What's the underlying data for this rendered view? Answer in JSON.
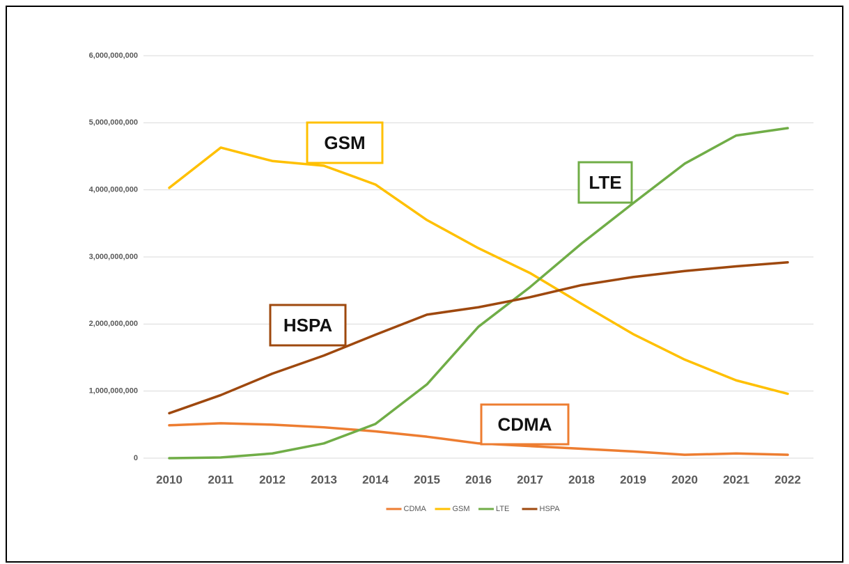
{
  "chart_data": {
    "type": "line",
    "categories": [
      "2010",
      "2011",
      "2012",
      "2013",
      "2014",
      "2015",
      "2016",
      "2017",
      "2018",
      "2019",
      "2020",
      "2021",
      "2022"
    ],
    "series": [
      {
        "name": "CDMA",
        "color": "#ed7d31",
        "values": [
          490000000,
          520000000,
          500000000,
          460000000,
          400000000,
          320000000,
          220000000,
          180000000,
          140000000,
          100000000,
          50000000,
          70000000,
          50000000
        ]
      },
      {
        "name": "GSM",
        "color": "#ffc000",
        "values": [
          4030000000,
          4630000000,
          4430000000,
          4360000000,
          4080000000,
          3550000000,
          3130000000,
          2760000000,
          2300000000,
          1850000000,
          1470000000,
          1160000000,
          960000000
        ]
      },
      {
        "name": "LTE",
        "color": "#70ad47",
        "values": [
          0,
          10000000,
          70000000,
          220000000,
          510000000,
          1100000000,
          1960000000,
          2550000000,
          3200000000,
          3800000000,
          4390000000,
          4810000000,
          4920000000
        ]
      },
      {
        "name": "HSPA",
        "color": "#9e480e",
        "values": [
          670000000,
          940000000,
          1260000000,
          1530000000,
          1840000000,
          2140000000,
          2250000000,
          2400000000,
          2580000000,
          2700000000,
          2790000000,
          2860000000,
          2920000000
        ]
      }
    ],
    "ylim": [
      0,
      6000000000
    ],
    "yticks": [
      0,
      {
        "value": 1000000000,
        "label": "1,000,000,000"
      },
      {
        "value": 2000000000,
        "label": "2,000,000,000"
      },
      {
        "value": 3000000000,
        "label": "3,000,000,000"
      },
      {
        "value": 4000000000,
        "label": "4,000,000,000"
      },
      {
        "value": 5000000000,
        "label": "5,000,000,000"
      },
      {
        "value": 6000000000,
        "label": "6,000,000,000"
      }
    ],
    "grid": true,
    "legend": "bottom",
    "annotations": [
      {
        "text": "GSM",
        "color": "#ffc000"
      },
      {
        "text": "LTE",
        "color": "#70ad47"
      },
      {
        "text": "HSPA",
        "color": "#9e480e"
      },
      {
        "text": "CDMA",
        "color": "#ed7d31"
      }
    ]
  }
}
